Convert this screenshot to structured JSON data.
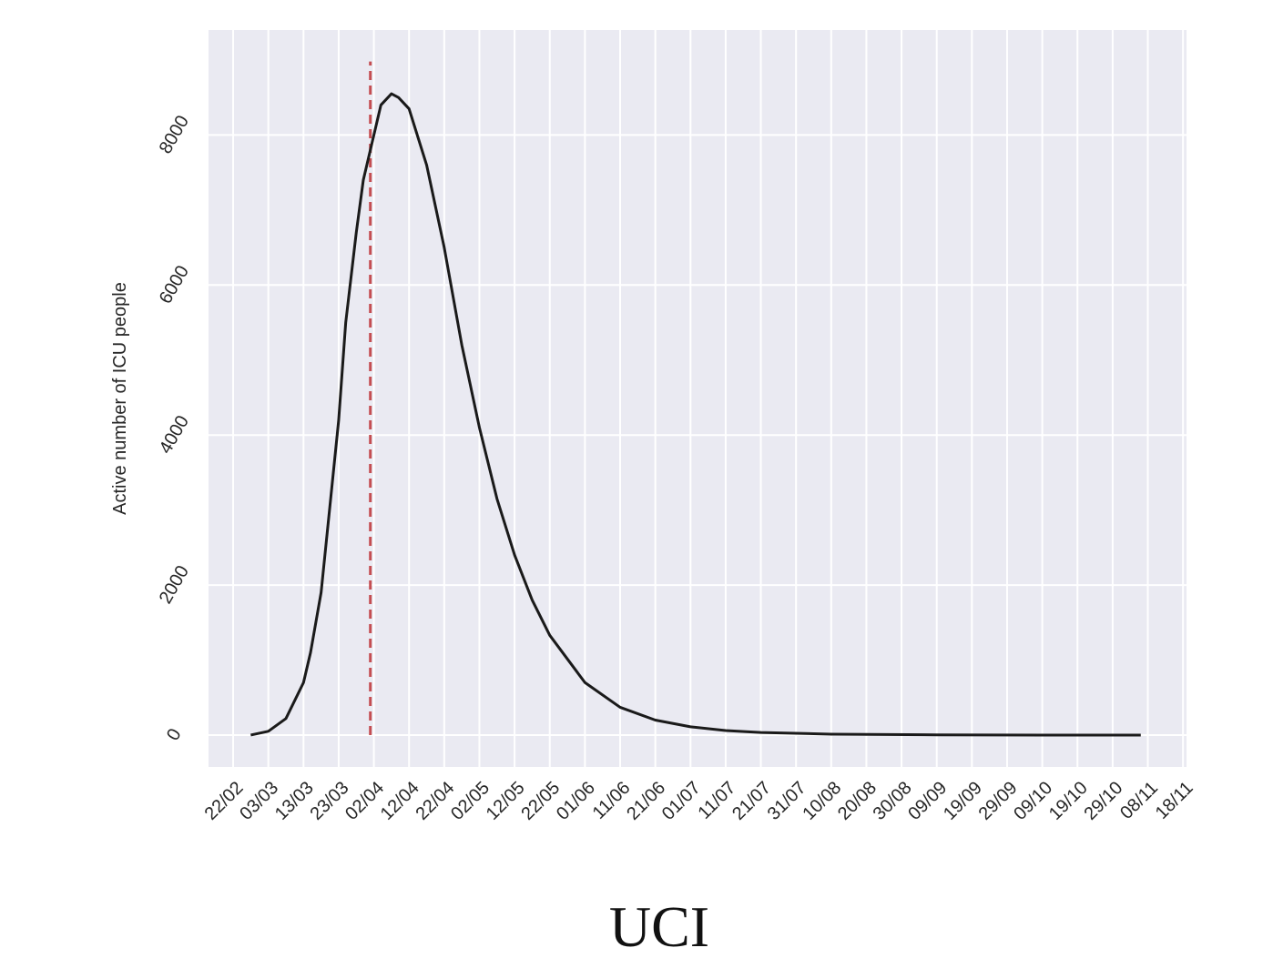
{
  "chart_data": {
    "type": "line",
    "title": "UCI",
    "ylabel": "Active number of ICU people",
    "x": [
      "27/02",
      "03/03",
      "08/03",
      "13/03",
      "15/03",
      "18/03",
      "23/03",
      "25/03",
      "28/03",
      "30/03",
      "02/04",
      "04/04",
      "07/04",
      "09/04",
      "12/04",
      "17/04",
      "22/04",
      "27/04",
      "02/05",
      "07/05",
      "12/05",
      "17/05",
      "22/05",
      "01/06",
      "11/06",
      "21/06",
      "01/07",
      "11/07",
      "21/07",
      "10/08",
      "09/09",
      "09/10",
      "06/11"
    ],
    "series": [
      {
        "name": "ICU",
        "color": "#1a1a1a",
        "values": [
          0,
          50,
          220,
          700,
          1100,
          1900,
          4200,
          5500,
          6700,
          7400,
          8000,
          8400,
          8550,
          8500,
          8350,
          7600,
          6500,
          5200,
          4100,
          3150,
          2400,
          1800,
          1330,
          700,
          370,
          200,
          110,
          60,
          35,
          12,
          3,
          0,
          0
        ]
      }
    ],
    "vline": {
      "x": "01/04",
      "ylim": [
        0,
        8980
      ],
      "color": "#c44e52"
    },
    "xlim": [
      "15/02",
      "19/11"
    ],
    "xticks": [
      "22/02",
      "03/03",
      "13/03",
      "23/03",
      "02/04",
      "12/04",
      "22/04",
      "02/05",
      "12/05",
      "22/05",
      "01/06",
      "11/06",
      "21/06",
      "01/07",
      "11/07",
      "21/07",
      "31/07",
      "10/08",
      "20/08",
      "30/08",
      "09/09",
      "19/09",
      "29/09",
      "09/10",
      "19/10",
      "29/10",
      "08/11",
      "18/11"
    ],
    "ylim": [
      -425,
      9400
    ],
    "yticks": [
      0,
      2000,
      4000,
      6000,
      8000
    ],
    "grid": true,
    "background": "#eaeaf2"
  }
}
